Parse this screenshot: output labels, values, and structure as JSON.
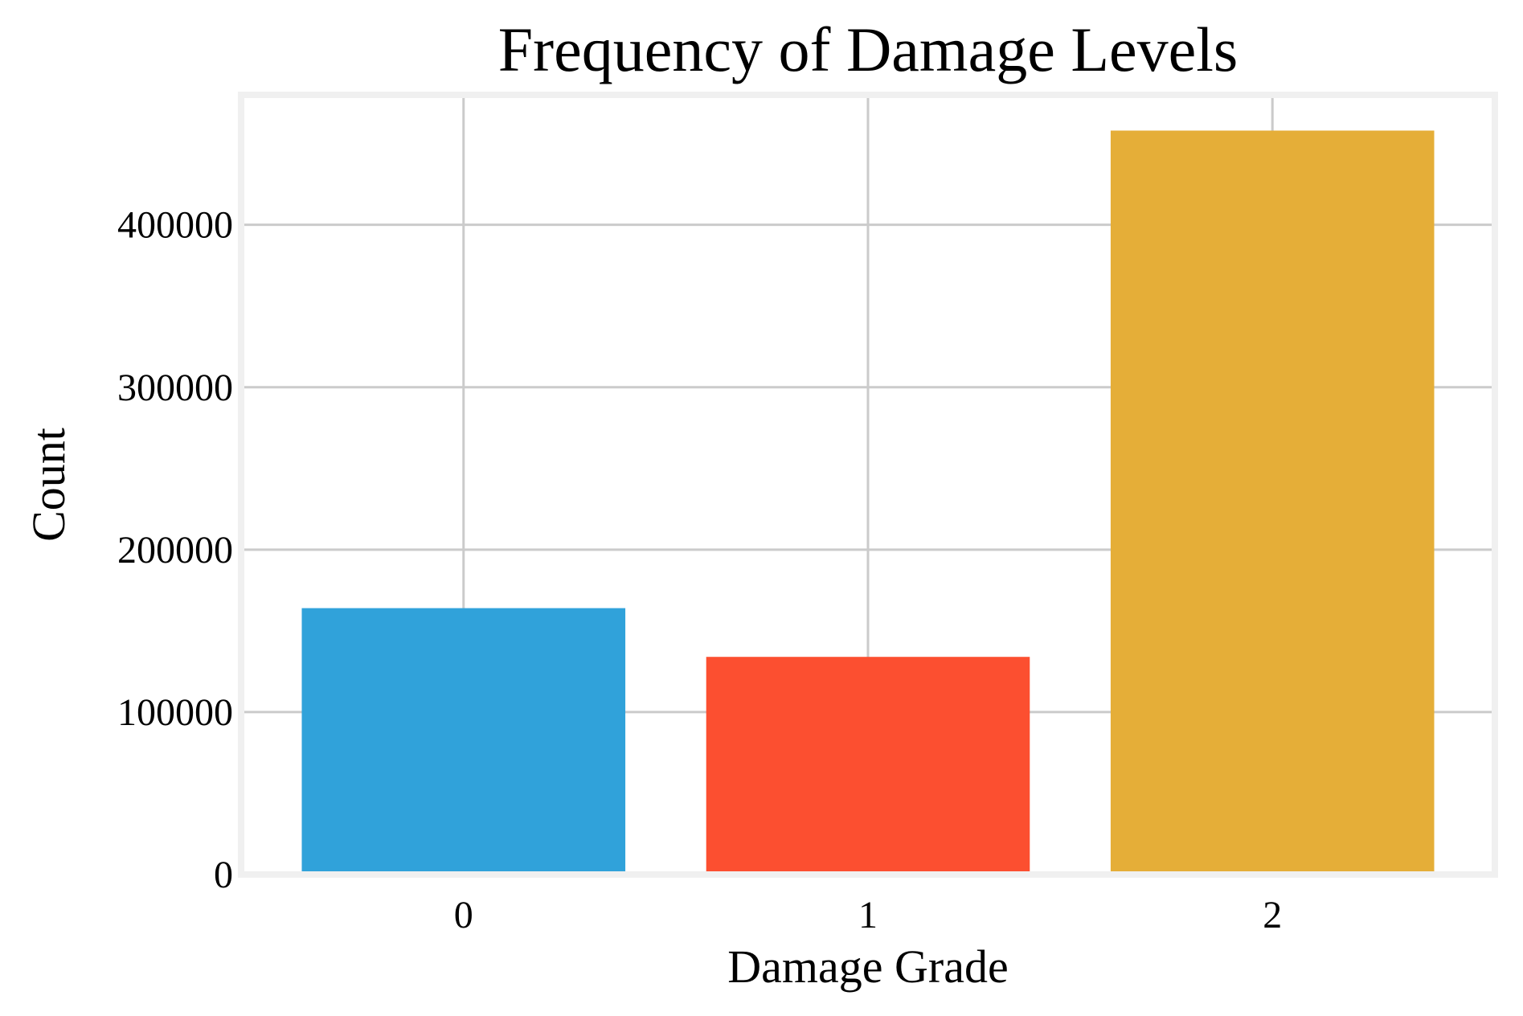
{
  "chart_data": {
    "type": "bar",
    "title": "Frequency of Damage Levels",
    "xlabel": "Damage Grade",
    "ylabel": "Count",
    "categories": [
      "0",
      "1",
      "2"
    ],
    "values": [
      164000,
      134000,
      458000
    ],
    "colors": [
      "#30A2DA",
      "#FC4F30",
      "#E5AE38"
    ],
    "ylim": [
      0,
      480000
    ],
    "yticks": [
      0,
      100000,
      200000,
      300000,
      400000
    ],
    "ytick_labels": [
      "0",
      "100000",
      "200000",
      "300000",
      "400000"
    ],
    "grid": true,
    "legend": false,
    "style": {
      "grid_color": "#CBCBCB",
      "frame_color": "#F0F0F0",
      "background": "#FFFFFF"
    }
  }
}
